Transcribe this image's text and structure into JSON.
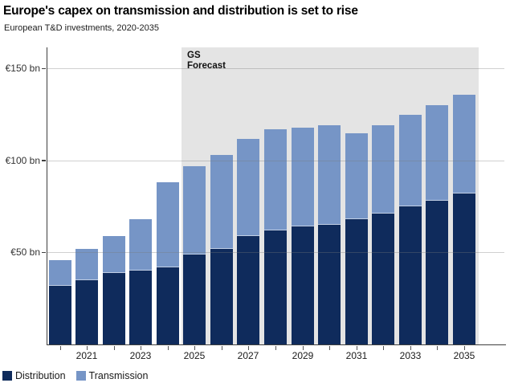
{
  "header": {
    "title": "Europe's capex on transmission and distribution is set to rise",
    "subtitle": "European T&D investments, 2020-2035"
  },
  "chart_data": {
    "type": "bar",
    "stacked": true,
    "title": "Europe's capex on transmission and distribution is set to rise",
    "subtitle": "European T&D investments, 2020-2035",
    "categories": [
      "2020",
      "2021",
      "2022",
      "2023",
      "2024",
      "2025",
      "2026",
      "2027",
      "2028",
      "2029",
      "2030",
      "2031",
      "2032",
      "2033",
      "2034",
      "2035"
    ],
    "series": [
      {
        "name": "Distribution",
        "color": "#0f2b5c",
        "values": [
          32,
          35,
          39,
          40,
          42,
          49,
          52,
          59,
          62,
          64,
          65,
          68,
          71,
          75,
          78,
          82
        ]
      },
      {
        "name": "Transmission",
        "color": "#7695c6",
        "values": [
          14,
          17,
          20,
          28,
          46,
          48,
          51,
          53,
          55,
          54,
          54,
          47,
          48,
          50,
          52,
          54
        ]
      }
    ],
    "totals": [
      46,
      52,
      59,
      68,
      88,
      97,
      103,
      112,
      117,
      118,
      119,
      115,
      119,
      125,
      130,
      136
    ],
    "yticks": [
      {
        "value": 50,
        "label": "€50 bn"
      },
      {
        "value": 100,
        "label": "€100 bn"
      },
      {
        "value": 150,
        "label": "€150 bn"
      }
    ],
    "ylim": [
      0,
      161
    ],
    "xtick_label_years": [
      "2021",
      "2023",
      "2025",
      "2027",
      "2029",
      "2031",
      "2033",
      "2035"
    ],
    "grid": true,
    "legend_position": "bottom-left",
    "forecast_band": {
      "label_line1": "GS",
      "label_line2": "Forecast",
      "start_category": "2025",
      "end_category": "2035",
      "color": "#e4e4e4"
    }
  }
}
